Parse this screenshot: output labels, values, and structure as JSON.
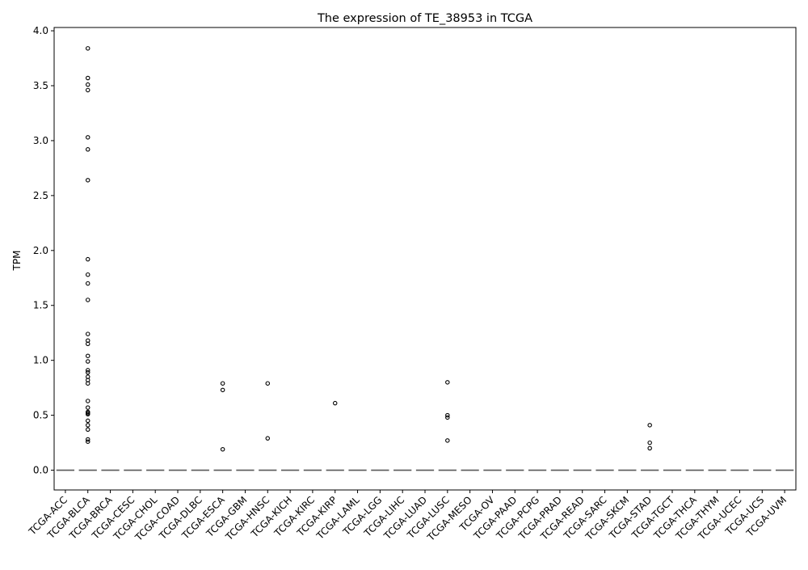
{
  "chart_data": {
    "type": "box",
    "title": "The expression of TE_38953 in TCGA",
    "xlabel": "",
    "ylabel": "TPM",
    "ylim": [
      -0.18,
      4.03
    ],
    "yticks": [
      0.0,
      0.5,
      1.0,
      1.5,
      2.0,
      2.5,
      3.0,
      3.5,
      4.0
    ],
    "ytick_labels": [
      "0.0",
      "0.5",
      "1.0",
      "1.5",
      "2.0",
      "2.5",
      "3.0",
      "3.5",
      "4.0"
    ],
    "grid": false,
    "legend": "none",
    "categories": [
      "TCGA-ACC",
      "TCGA-BLCA",
      "TCGA-BRCA",
      "TCGA-CESC",
      "TCGA-CHOL",
      "TCGA-COAD",
      "TCGA-DLBC",
      "TCGA-ESCA",
      "TCGA-GBM",
      "TCGA-HNSC",
      "TCGA-KICH",
      "TCGA-KIRC",
      "TCGA-KIRP",
      "TCGA-LAML",
      "TCGA-LGG",
      "TCGA-LIHC",
      "TCGA-LUAD",
      "TCGA-LUSC",
      "TCGA-MESO",
      "TCGA-OV",
      "TCGA-PAAD",
      "TCGA-PCPG",
      "TCGA-PRAD",
      "TCGA-READ",
      "TCGA-SARC",
      "TCGA-SKCM",
      "TCGA-STAD",
      "TCGA-TGCT",
      "TCGA-THCA",
      "TCGA-THYM",
      "TCGA-UCEC",
      "TCGA-UCS",
      "TCGA-UVM"
    ],
    "median": [
      0,
      0,
      0,
      0,
      0,
      0,
      0,
      0,
      0,
      0,
      0,
      0,
      0,
      0,
      0,
      0,
      0,
      0,
      0,
      0,
      0,
      0,
      0,
      0,
      0,
      0,
      0,
      0,
      0,
      0,
      0,
      0,
      0
    ],
    "outliers": [
      [],
      [
        3.84,
        3.57,
        3.51,
        3.46,
        3.03,
        2.92,
        2.64,
        1.92,
        1.78,
        1.7,
        1.55,
        1.24,
        1.18,
        1.15,
        1.04,
        0.99,
        0.91,
        0.89,
        0.85,
        0.82,
        0.79,
        0.63,
        0.57,
        0.53,
        0.52,
        0.51,
        0.45,
        0.41,
        0.37,
        0.28,
        0.26
      ],
      [],
      [],
      [],
      [],
      [],
      [
        0.79,
        0.73,
        0.19
      ],
      [],
      [
        0.79,
        0.29
      ],
      [],
      [],
      [
        0.61
      ],
      [],
      [],
      [],
      [],
      [
        0.8,
        0.5,
        0.48,
        0.27
      ],
      [],
      [],
      [],
      [],
      [],
      [],
      [],
      [],
      [
        0.41,
        0.25,
        0.2
      ],
      [],
      [],
      [],
      [],
      [],
      []
    ],
    "colors": {
      "box_line": "#595959",
      "outlier_edge": "#000000",
      "axis": "#000000"
    }
  }
}
